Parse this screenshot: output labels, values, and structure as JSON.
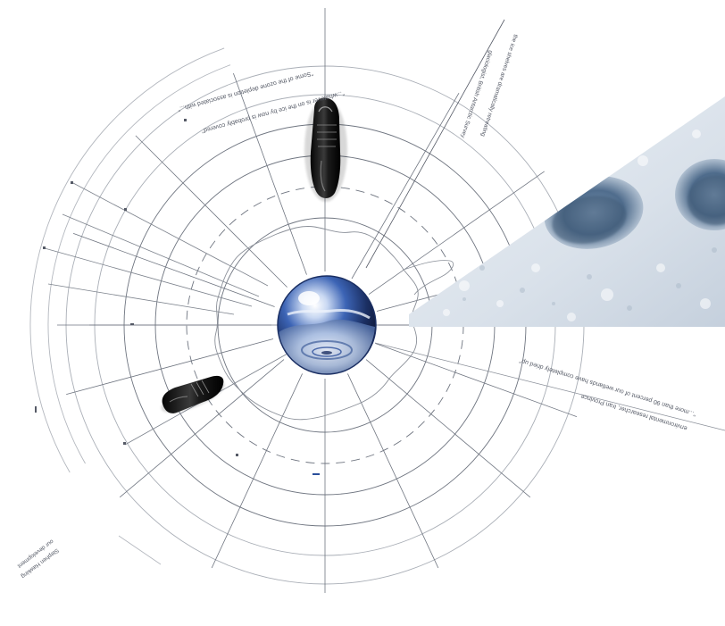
{
  "colors": {
    "background": "#ffffff",
    "grid_line": "#6f7580",
    "grid_line_light": "#a9aeb6",
    "snow_light": "#e8edf3",
    "snow_shadow": "#9fb2c7",
    "footprint_dark": "#3f5a76",
    "shoe_black": "#141414",
    "globe_blue": "#2a4e9a"
  },
  "quotes": {
    "quote_top_1": "\"...whatever is on the ice by now is probably covered\"",
    "quote_top_2": "\"Some of the ozone depletion is associated with...\"",
    "quote_top_3": "glaciologist, British Antarctic Survey",
    "quote_top_4": "the ice shelves are dramatically retreating",
    "quote_right_1": "\"...more than 90 percent of our wetlands have completely dried up\"",
    "quote_right_2": "environmental researcher, Iran Province",
    "quote_left_1": "our development",
    "quote_left_2": "Stephen Hawking"
  },
  "icons": {
    "shoe_top": "dress-shoe-icon",
    "shoe_left": "dress-shoe-icon",
    "globe": "glass-globe-icon",
    "footprints": "snow-footprints-icon"
  }
}
